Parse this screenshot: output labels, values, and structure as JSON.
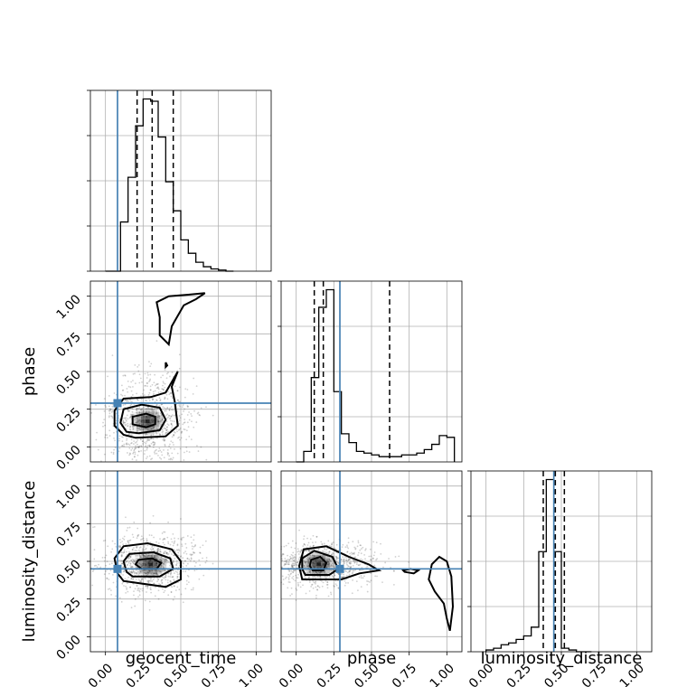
{
  "chart_data": {
    "type": "corner",
    "parameters": [
      "geocent_time",
      "phase",
      "luminosity_distance"
    ],
    "axis_labels": {
      "bottom": [
        "geocent_time",
        "phase",
        "luminosity_distance"
      ],
      "left": [
        "phase",
        "luminosity_distance"
      ]
    },
    "range": [
      -0.1,
      1.1
    ],
    "ticks": [
      "0.00",
      "0.25",
      "0.50",
      "0.75",
      "1.00"
    ],
    "tick_values": [
      0.0,
      0.25,
      0.5,
      0.75,
      1.0
    ],
    "grid": true,
    "colors": {
      "truth": "#4682b4",
      "ink": "#000000",
      "grid": "#b0b0b0"
    },
    "truths": {
      "geocent_time": 0.08,
      "phase": 0.29,
      "luminosity_distance": 0.45
    },
    "quantiles": {
      "geocent_time": [
        0.21,
        0.31,
        0.45
      ],
      "phase": [
        0.12,
        0.18,
        0.62
      ],
      "luminosity_distance": [
        0.38,
        0.46,
        0.52
      ]
    },
    "histograms": {
      "geocent_time": {
        "edges": [
          0.0,
          0.05,
          0.1,
          0.15,
          0.2,
          0.25,
          0.3,
          0.35,
          0.4,
          0.45,
          0.5,
          0.55,
          0.6,
          0.65,
          0.7,
          0.75,
          0.8,
          0.85
        ],
        "counts": [
          0,
          0,
          22,
          42,
          65,
          77,
          76,
          60,
          40,
          27,
          14,
          8,
          4,
          2,
          1,
          0.5,
          0
        ]
      },
      "phase": {
        "edges": [
          0.0,
          0.05,
          0.1,
          0.15,
          0.2,
          0.25,
          0.3,
          0.35,
          0.4,
          0.45,
          0.5,
          0.55,
          0.6,
          0.65,
          0.7,
          0.75,
          0.8,
          0.85,
          0.9,
          0.95,
          1.0,
          1.05
        ],
        "counts": [
          0,
          6,
          48,
          88,
          98,
          40,
          16,
          11,
          6,
          5,
          4,
          3,
          3,
          3,
          4,
          4,
          5,
          7,
          10,
          15,
          14
        ]
      },
      "luminosity_distance": {
        "edges": [
          0.0,
          0.05,
          0.1,
          0.15,
          0.2,
          0.25,
          0.3,
          0.35,
          0.4,
          0.45,
          0.5,
          0.55,
          0.6,
          0.65,
          0.7
        ],
        "counts": [
          1,
          2,
          4,
          5,
          7,
          9,
          14,
          57,
          98,
          57,
          2,
          1,
          0,
          0
        ]
      }
    },
    "joint": [
      {
        "x": "geocent_time",
        "y": "phase",
        "mode": [
          0.28,
          0.17
        ],
        "contours": [
          [
            [
              0.27,
              0.13
            ],
            [
              0.33,
              0.15
            ],
            [
              0.33,
              0.2
            ],
            [
              0.27,
              0.22
            ],
            [
              0.18,
              0.2
            ],
            [
              0.18,
              0.15
            ]
          ],
          [
            [
              0.22,
              0.09
            ],
            [
              0.36,
              0.11
            ],
            [
              0.4,
              0.18
            ],
            [
              0.36,
              0.26
            ],
            [
              0.24,
              0.28
            ],
            [
              0.12,
              0.25
            ],
            [
              0.1,
              0.16
            ],
            [
              0.14,
              0.1
            ]
          ],
          [
            [
              0.2,
              0.06
            ],
            [
              0.4,
              0.07
            ],
            [
              0.48,
              0.14
            ],
            [
              0.46,
              0.3
            ],
            [
              0.44,
              0.4
            ],
            [
              0.48,
              0.5
            ],
            [
              0.4,
              0.36
            ],
            [
              0.3,
              0.33
            ],
            [
              0.12,
              0.32
            ],
            [
              0.06,
              0.24
            ],
            [
              0.06,
              0.14
            ],
            [
              0.12,
              0.08
            ]
          ],
          [
            [
              0.36,
              0.86
            ],
            [
              0.34,
              0.96
            ],
            [
              0.42,
              1.0
            ],
            [
              0.55,
              1.01
            ],
            [
              0.66,
              1.02
            ],
            [
              0.6,
              0.98
            ],
            [
              0.52,
              0.94
            ],
            [
              0.44,
              0.8
            ],
            [
              0.42,
              0.68
            ],
            [
              0.36,
              0.74
            ]
          ],
          [
            [
              0.4,
              0.56
            ],
            [
              0.41,
              0.54
            ],
            [
              0.4,
              0.53
            ]
          ]
        ]
      },
      {
        "x": "geocent_time",
        "y": "luminosity_distance",
        "mode": [
          0.3,
          0.48
        ],
        "contours": [
          [
            [
              0.24,
              0.45
            ],
            [
              0.34,
              0.45
            ],
            [
              0.37,
              0.49
            ],
            [
              0.31,
              0.52
            ],
            [
              0.22,
              0.51
            ],
            [
              0.2,
              0.48
            ]
          ],
          [
            [
              0.18,
              0.4
            ],
            [
              0.36,
              0.4
            ],
            [
              0.45,
              0.45
            ],
            [
              0.43,
              0.52
            ],
            [
              0.32,
              0.56
            ],
            [
              0.16,
              0.55
            ],
            [
              0.12,
              0.5
            ],
            [
              0.14,
              0.43
            ]
          ],
          [
            [
              0.12,
              0.37
            ],
            [
              0.4,
              0.33
            ],
            [
              0.5,
              0.38
            ],
            [
              0.5,
              0.5
            ],
            [
              0.44,
              0.58
            ],
            [
              0.28,
              0.62
            ],
            [
              0.12,
              0.6
            ],
            [
              0.06,
              0.52
            ],
            [
              0.08,
              0.42
            ]
          ]
        ]
      },
      {
        "x": "phase",
        "y": "luminosity_distance",
        "mode": [
          0.15,
          0.48
        ],
        "contours": [
          [
            [
              0.11,
              0.44
            ],
            [
              0.18,
              0.44
            ],
            [
              0.2,
              0.49
            ],
            [
              0.16,
              0.53
            ],
            [
              0.1,
              0.51
            ],
            [
              0.09,
              0.47
            ]
          ],
          [
            [
              0.06,
              0.41
            ],
            [
              0.22,
              0.41
            ],
            [
              0.28,
              0.45
            ],
            [
              0.24,
              0.53
            ],
            [
              0.12,
              0.57
            ],
            [
              0.04,
              0.52
            ],
            [
              0.04,
              0.45
            ]
          ],
          [
            [
              0.04,
              0.38
            ],
            [
              0.3,
              0.38
            ],
            [
              0.42,
              0.42
            ],
            [
              0.55,
              0.44
            ],
            [
              0.48,
              0.48
            ],
            [
              0.35,
              0.53
            ],
            [
              0.2,
              0.6
            ],
            [
              0.05,
              0.58
            ],
            [
              0.02,
              0.47
            ]
          ],
          [
            [
              0.72,
              0.43
            ],
            [
              0.78,
              0.42
            ],
            [
              0.81,
              0.44
            ],
            [
              0.76,
              0.45
            ],
            [
              0.71,
              0.44
            ]
          ],
          [
            [
              0.9,
              0.48
            ],
            [
              0.88,
              0.38
            ],
            [
              0.92,
              0.3
            ],
            [
              0.98,
              0.22
            ],
            [
              1.0,
              0.12
            ],
            [
              1.02,
              0.04
            ],
            [
              1.04,
              0.2
            ],
            [
              1.03,
              0.4
            ],
            [
              1.0,
              0.5
            ],
            [
              0.95,
              0.53
            ]
          ]
        ]
      }
    ]
  }
}
